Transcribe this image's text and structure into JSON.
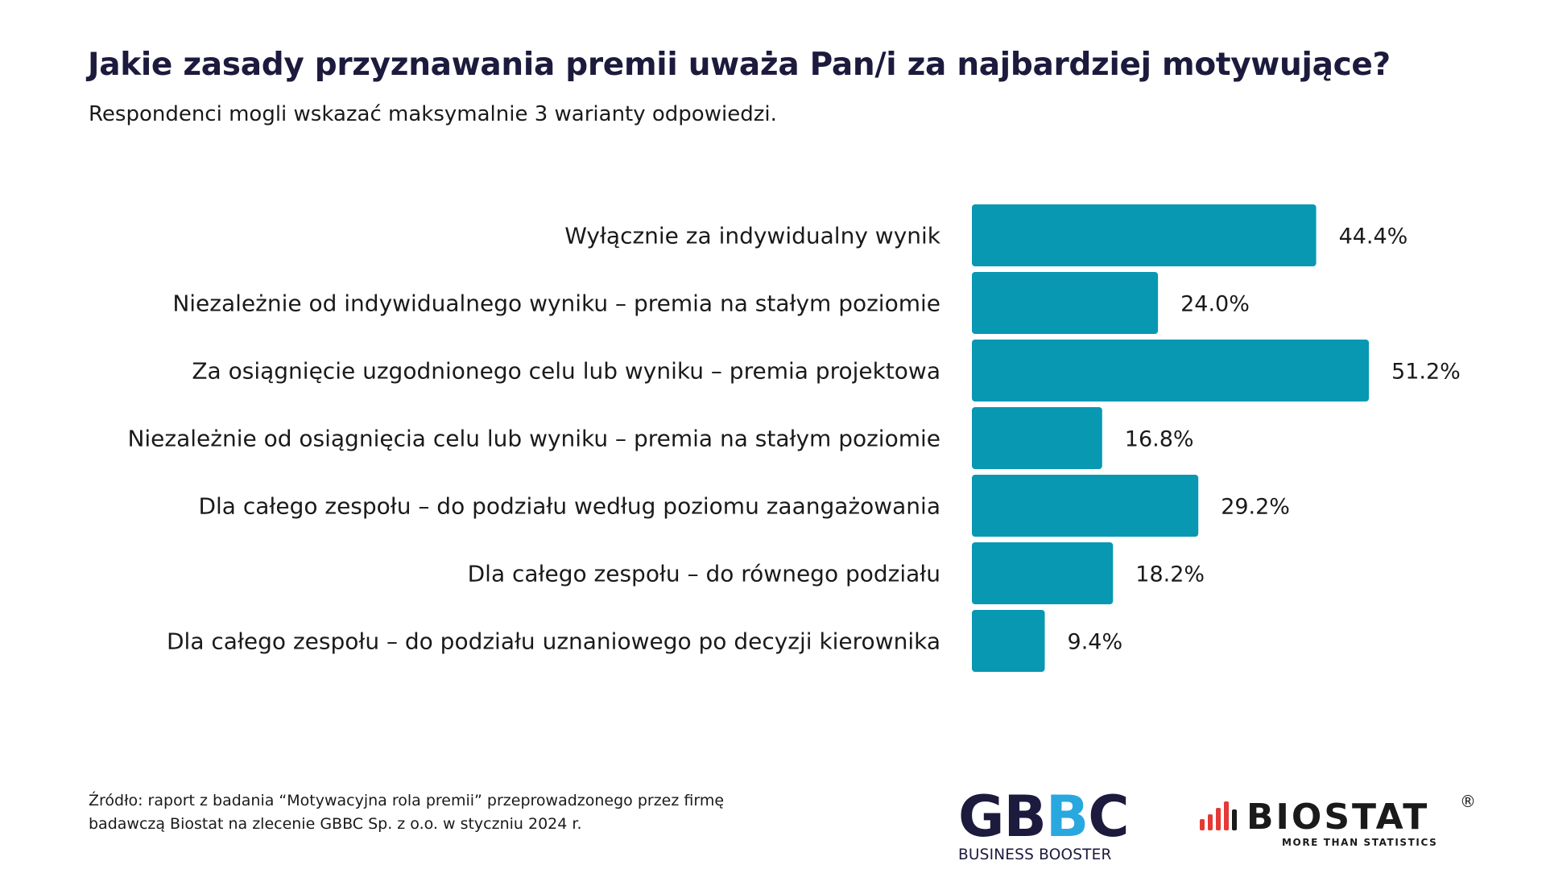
{
  "title": "Jakie zasady przyznawania premii uważa Pan/i za najbardziej motywujące?",
  "subtitle": "Respondenci mogli wskazać maksymalnie 3 warianty odpowiedzi.",
  "colors": {
    "bar": "#0898b2",
    "title": "#1c1a3d",
    "gbbc_accent": "#29a8df",
    "biostat_red": "#e53935"
  },
  "chart_data": {
    "type": "bar",
    "orientation": "horizontal",
    "categories": [
      "Wyłącznie za indywidualny wynik",
      "Niezależnie od indywidualnego wyniku – premia na stałym poziomie",
      "Za osiągnięcie uzgodnionego celu lub wyniku – premia projektowa",
      "Niezależnie od osiągnięcia celu lub wyniku – premia na stałym poziomie",
      "Dla całego zespołu – do podziału według poziomu zaangażowania",
      "Dla całego zespołu – do równego podziału",
      "Dla całego zespołu – do podziału uznaniowego po decyzji kierownika"
    ],
    "values": [
      44.4,
      24.0,
      51.2,
      16.8,
      29.2,
      18.2,
      9.4
    ],
    "value_labels": [
      "44.4%",
      "24.0%",
      "51.2%",
      "16.8%",
      "29.2%",
      "18.2%",
      "9.4%"
    ],
    "xlim": [
      0,
      51.2
    ],
    "grid": false,
    "legend": "none"
  },
  "source": {
    "line1": "Źródło: raport z badania “Motywacyjna rola premii” przeprowadzonego przez firmę",
    "line2": "badawczą Biostat na zlecenie GBBC Sp. z o.o. w styczniu 2024 r."
  },
  "logos": {
    "gbbc": {
      "letters": [
        "G",
        "B",
        "B",
        "C"
      ],
      "tagline": "BUSINESS BOOSTER"
    },
    "biostat": {
      "word": "BIOSTAT",
      "registered": "®",
      "tagline": "MORE THAN STATISTICS"
    }
  }
}
